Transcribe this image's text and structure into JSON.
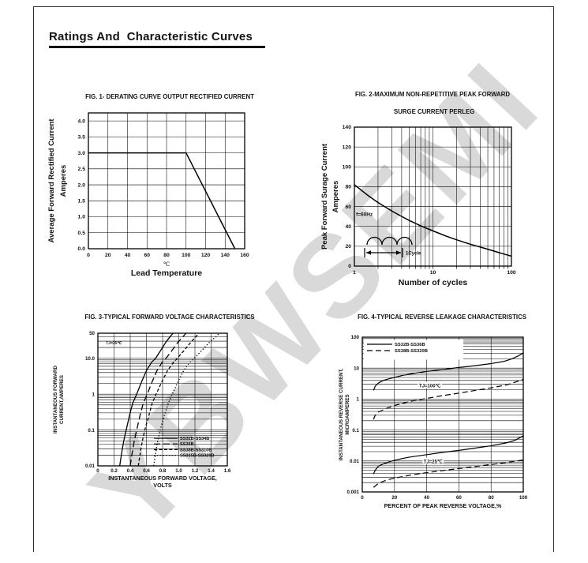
{
  "page": {
    "title": "Ratings And  Characteristic Curves",
    "watermark": "YBWSEMI"
  },
  "chart_data": [
    {
      "id": "fig1",
      "type": "line",
      "title": "FIG. 1- DERATING CURVE OUTPUT RECTIFIED CURRENT",
      "xunit": "℃",
      "xlabel": "Lead Temperature",
      "ylabel": "Average Forward Rectified Current",
      "ylabel2": "Amperes",
      "x_axis": {
        "scale": "linear",
        "min": 0,
        "max": 160,
        "ticks": [
          0,
          20,
          40,
          60,
          80,
          100,
          120,
          140,
          160
        ],
        "labels": [
          "0",
          "20",
          "40",
          "60",
          "80",
          "100",
          "120",
          "140",
          "160"
        ]
      },
      "y_axis": {
        "scale": "linear",
        "min": 0,
        "max": 4.25,
        "ticks": [
          0,
          0.5,
          1,
          1.5,
          2,
          2.5,
          3,
          3.5,
          4
        ],
        "labels": [
          "0.0",
          "0.5",
          "1.0",
          "1.5",
          "2.0",
          "2.5",
          "3.0",
          "3.5",
          "4.0"
        ]
      },
      "grid": true,
      "series": [
        {
          "style": "solid",
          "points": [
            [
              0,
              3
            ],
            [
              100,
              3
            ],
            [
              150,
              0
            ]
          ]
        }
      ]
    },
    {
      "id": "fig2",
      "type": "line",
      "title": "FIG. 2-MAXIMUM NON-REPETITIVE PEAK FORWARD",
      "title2": "SURGE CURRENT PERLEG",
      "xlabel": "Number of cycles",
      "ylabel": "Peak Forward Surage Current",
      "ylabel2": "Amperes",
      "x_axis": {
        "scale": "log",
        "min": 1,
        "max": 100,
        "ticks": [
          1,
          10,
          100
        ],
        "labels": [
          "1",
          "10",
          "100"
        ]
      },
      "y_axis": {
        "scale": "linear",
        "min": 0,
        "max": 140,
        "ticks": [
          0,
          20,
          40,
          60,
          80,
          100,
          120,
          140
        ],
        "labels": [
          "0",
          "20",
          "40",
          "60",
          "80",
          "100",
          "120",
          "140"
        ]
      },
      "grid": true,
      "series": [
        {
          "style": "solid",
          "points": [
            [
              1,
              82
            ],
            [
              1.5,
              71
            ],
            [
              2,
              64
            ],
            [
              3,
              55.5
            ],
            [
              4,
              50
            ],
            [
              5,
              46
            ],
            [
              7,
              40.5
            ],
            [
              10,
              35.5
            ],
            [
              15,
              30
            ],
            [
              20,
              26.5
            ],
            [
              30,
              22
            ],
            [
              50,
              17
            ],
            [
              70,
              13.5
            ],
            [
              100,
              10
            ]
          ]
        }
      ],
      "annotations": [
        {
          "text": "f=60Hz",
          "x": 1.05,
          "y": 52,
          "anchor": "start",
          "size": 6.5
        }
      ],
      "cycle_label": "1Cycle"
    },
    {
      "id": "fig3",
      "type": "line",
      "title": "FIG. 3-TYPICAL FORWARD VOLTAGE CHARACTERISTICS",
      "xlabel": "INSTANTANEOUS FORWARD VOLTAGE,",
      "xlabel2": "VOLTS",
      "ylabel": "INSTANTANEOUS FORWARD",
      "ylabel2": "CURRENT,AMPERES",
      "x_axis": {
        "scale": "linear",
        "min": 0,
        "max": 1.6,
        "ticks": [
          0,
          0.2,
          0.4,
          0.6,
          0.8,
          1,
          1.2,
          1.4,
          1.6
        ],
        "labels": [
          "0",
          "0.2",
          "0.4",
          "0.6",
          "0.8",
          "1.0",
          "1.2",
          "1.4",
          "1.6"
        ]
      },
      "y_axis": {
        "scale": "log",
        "min": 0.01,
        "max": 50,
        "ticks": [
          0.01,
          0.1,
          1,
          10,
          50
        ],
        "labels": [
          "0.01",
          "0.1",
          "1",
          "10.0",
          "50"
        ]
      },
      "grid": true,
      "series": [
        {
          "name": "SS32B-SS34B",
          "style": "solid",
          "points": [
            [
              0.27,
              0.01
            ],
            [
              0.29,
              0.02
            ],
            [
              0.32,
              0.05
            ],
            [
              0.35,
              0.1
            ],
            [
              0.39,
              0.25
            ],
            [
              0.43,
              0.55
            ],
            [
              0.48,
              1
            ],
            [
              0.54,
              2.2
            ],
            [
              0.6,
              4.5
            ],
            [
              0.66,
              7.5
            ],
            [
              0.72,
              10.5
            ],
            [
              0.78,
              17
            ],
            [
              0.84,
              28
            ],
            [
              0.9,
              42
            ],
            [
              0.93,
              50
            ]
          ]
        },
        {
          "name": "SS36B",
          "style": "longdash",
          "points": [
            [
              0.4,
              0.01
            ],
            [
              0.42,
              0.02
            ],
            [
              0.45,
              0.05
            ],
            [
              0.48,
              0.1
            ],
            [
              0.52,
              0.25
            ],
            [
              0.56,
              0.55
            ],
            [
              0.61,
              1
            ],
            [
              0.67,
              2.2
            ],
            [
              0.73,
              4.5
            ],
            [
              0.79,
              7.5
            ],
            [
              0.85,
              10.5
            ],
            [
              0.92,
              17
            ],
            [
              0.99,
              28
            ],
            [
              1.06,
              42
            ],
            [
              1.09,
              50
            ]
          ]
        },
        {
          "name": "SS38B-SS310B",
          "style": "shortdash",
          "points": [
            [
              0.5,
              0.01
            ],
            [
              0.52,
              0.02
            ],
            [
              0.55,
              0.05
            ],
            [
              0.58,
              0.1
            ],
            [
              0.63,
              0.25
            ],
            [
              0.67,
              0.55
            ],
            [
              0.72,
              1
            ],
            [
              0.79,
              2.2
            ],
            [
              0.86,
              4.5
            ],
            [
              0.93,
              7.5
            ],
            [
              0.99,
              10.5
            ],
            [
              1.07,
              17
            ],
            [
              1.15,
              28
            ],
            [
              1.22,
              42
            ],
            [
              1.25,
              50
            ]
          ]
        },
        {
          "name": "SS315B-SS320B",
          "style": "dotted",
          "points": [
            [
              0.69,
              0.01
            ],
            [
              0.71,
              0.02
            ],
            [
              0.74,
              0.05
            ],
            [
              0.77,
              0.1
            ],
            [
              0.82,
              0.25
            ],
            [
              0.87,
              0.55
            ],
            [
              0.92,
              1
            ],
            [
              0.99,
              2.2
            ],
            [
              1.06,
              4.5
            ],
            [
              1.13,
              7.5
            ],
            [
              1.2,
              10.5
            ],
            [
              1.29,
              17
            ],
            [
              1.38,
              28
            ],
            [
              1.47,
              42
            ],
            [
              1.5,
              50
            ]
          ]
        }
      ],
      "annotations": [
        {
          "text": "TJ=25℃",
          "x": 0.1,
          "y": 27,
          "anchor": "start",
          "size": 5
        }
      ],
      "legend": [
        {
          "label": "SS32B-SS34B",
          "style": "solid"
        },
        {
          "label": "SS36B",
          "style": "longdash"
        },
        {
          "label": "SS38B-SS310B",
          "style": "shortdash"
        },
        {
          "label": "SS315B-SS320B",
          "style": "dotted"
        }
      ]
    },
    {
      "id": "fig4",
      "type": "line",
      "title": "FIG. 4-TYPICAL REVERSE LEAKAGE CHARACTERISTICS",
      "xlabel": "PERCENT OF PEAK REVERSE VOLTAGE,%",
      "ylabel": "INSTANTANEOUS REVERSE CURRENT,",
      "ylabel2": "MICROAMPERES",
      "x_axis": {
        "scale": "linear",
        "min": 0,
        "max": 100,
        "ticks": [
          0,
          20,
          40,
          60,
          80,
          100
        ],
        "labels": [
          "0",
          "20",
          "40",
          "60",
          "80",
          "100"
        ]
      },
      "y_axis": {
        "scale": "log",
        "min": 0.001,
        "max": 100,
        "ticks": [
          0.001,
          0.01,
          0.1,
          1,
          10,
          100
        ],
        "labels": [
          "0.001",
          "0.01",
          "0.1",
          "1",
          "10",
          "100"
        ]
      },
      "grid": true,
      "series": [
        {
          "name": "SS32B-SS36B TJ=100℃",
          "style": "solid",
          "points": [
            [
              7,
              1.9
            ],
            [
              8,
              2.6
            ],
            [
              10,
              3.3
            ],
            [
              13,
              4
            ],
            [
              17,
              4.6
            ],
            [
              20,
              5
            ],
            [
              25,
              5.8
            ],
            [
              30,
              6.5
            ],
            [
              40,
              7.8
            ],
            [
              50,
              9
            ],
            [
              60,
              10.5
            ],
            [
              70,
              12
            ],
            [
              80,
              14
            ],
            [
              88,
              16.5
            ],
            [
              93,
              20
            ],
            [
              97,
              25
            ],
            [
              100,
              31
            ]
          ]
        },
        {
          "name": "SS38B-SS320B TJ=100℃",
          "style": "dash",
          "points": [
            [
              7,
              0.22
            ],
            [
              8,
              0.3
            ],
            [
              10,
              0.38
            ],
            [
              15,
              0.5
            ],
            [
              20,
              0.62
            ],
            [
              30,
              0.85
            ],
            [
              40,
              1.05
            ],
            [
              50,
              1.3
            ],
            [
              60,
              1.55
            ],
            [
              70,
              1.9
            ],
            [
              80,
              2.3
            ],
            [
              90,
              2.9
            ],
            [
              100,
              4.3
            ]
          ]
        },
        {
          "name": "SS32B-SS36B TJ=25℃",
          "style": "solid",
          "points": [
            [
              7,
              0.0038
            ],
            [
              8,
              0.005
            ],
            [
              10,
              0.0068
            ],
            [
              13,
              0.008
            ],
            [
              17,
              0.0095
            ],
            [
              20,
              0.0105
            ],
            [
              25,
              0.012
            ],
            [
              30,
              0.0135
            ],
            [
              40,
              0.016
            ],
            [
              50,
              0.019
            ],
            [
              60,
              0.022
            ],
            [
              70,
              0.026
            ],
            [
              80,
              0.031
            ],
            [
              90,
              0.039
            ],
            [
              95,
              0.047
            ],
            [
              100,
              0.065
            ]
          ]
        },
        {
          "name": "SS38B-SS320B TJ=25℃",
          "style": "dash",
          "points": [
            [
              7,
              0.0014
            ],
            [
              10,
              0.0019
            ],
            [
              15,
              0.0024
            ],
            [
              20,
              0.0028
            ],
            [
              30,
              0.0035
            ],
            [
              40,
              0.0042
            ],
            [
              50,
              0.0049
            ],
            [
              60,
              0.0057
            ],
            [
              70,
              0.0066
            ],
            [
              80,
              0.0077
            ],
            [
              90,
              0.009
            ],
            [
              100,
              0.0108
            ]
          ]
        }
      ],
      "annotations": [
        {
          "text": "TJ=100℃",
          "x": 42,
          "y": 2.7,
          "bg": true,
          "size": 6
        },
        {
          "text": "TJ=25℃",
          "x": 44,
          "y": 0.0095,
          "bg": true,
          "size": 6
        }
      ],
      "legend": [
        {
          "label": "SS32B-SS36B",
          "style": "solid"
        },
        {
          "label": "SS38B-SS320B",
          "style": "dash"
        }
      ]
    }
  ]
}
